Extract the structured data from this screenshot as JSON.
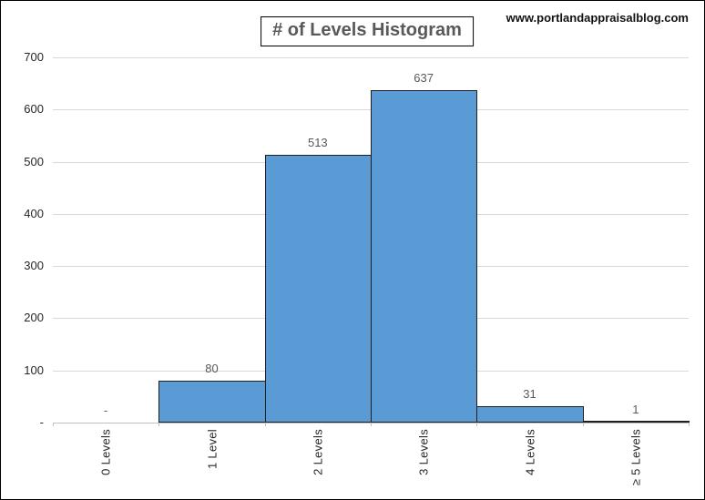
{
  "header": {
    "title": "# of Levels Histogram",
    "watermark": "www.portlandappraisalblog.com"
  },
  "chart_data": {
    "type": "bar",
    "subtype": "histogram",
    "title": "# of Levels Histogram",
    "categories": [
      "0 Levels",
      "1 Level",
      "2 Levels",
      "3 Levels",
      "4 Levels",
      "≥ 5 Levels"
    ],
    "values": [
      0,
      80,
      513,
      637,
      31,
      1
    ],
    "data_labels": [
      "-",
      "80",
      "513",
      "637",
      "31",
      "1"
    ],
    "xlabel": "",
    "ylabel": "",
    "ylim": [
      0,
      700
    ],
    "y_tick_interval": 100,
    "y_tick_labels": [
      "700",
      "600",
      "500",
      "400",
      "300",
      "200",
      "100",
      "-"
    ],
    "grid": true,
    "legend": false,
    "x_label_rotation": -90,
    "colors": {
      "bar_fill": "#5B9BD5",
      "bar_border": "#1F1F1F",
      "gridline": "#D9D9D9",
      "axis_line": "#BFBFBF",
      "axis_label_text": "#262626",
      "data_label_text": "#595959",
      "title_text": "#595959",
      "watermark_text": "#111111"
    }
  }
}
